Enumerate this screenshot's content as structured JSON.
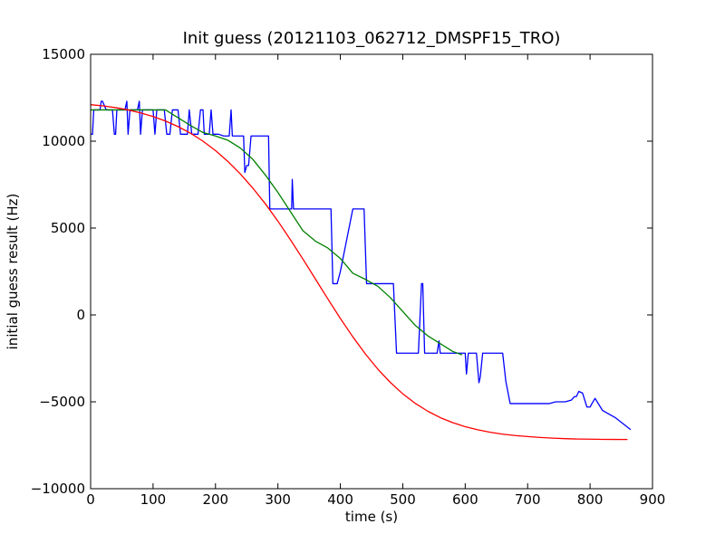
{
  "chart_data": {
    "type": "line",
    "title": "Init guess (20121103_062712_DMSPF15_TRO)",
    "xlabel": "time (s)",
    "ylabel": "initial guess result (Hz)",
    "xlim": [
      0,
      900
    ],
    "ylim": [
      -10000,
      15000
    ],
    "xticks": [
      0,
      100,
      200,
      300,
      400,
      500,
      600,
      700,
      800,
      900
    ],
    "yticks": [
      -10000,
      -5000,
      0,
      5000,
      10000,
      15000
    ],
    "xtick_labels": [
      "0",
      "100",
      "200",
      "300",
      "400",
      "500",
      "600",
      "700",
      "800",
      "900"
    ],
    "ytick_labels": [
      "−10000",
      "−5000",
      "0",
      "5000",
      "10000",
      "15000"
    ],
    "grid": false,
    "series": [
      {
        "color": "#0000ff",
        "x": [
          0,
          3,
          5,
          10,
          15,
          17,
          19,
          25,
          35,
          38,
          40,
          42,
          47,
          55,
          58,
          60,
          63,
          68,
          75,
          78,
          80,
          83,
          87,
          95,
          100,
          103,
          106,
          110,
          118,
          122,
          127,
          131,
          135,
          140,
          144,
          148,
          155,
          158,
          162,
          168,
          172,
          176,
          180,
          182,
          185,
          190,
          193,
          196,
          200,
          205,
          213,
          218,
          222,
          225,
          227,
          230,
          235,
          240,
          245,
          247,
          250,
          253,
          257,
          262,
          270,
          280,
          285,
          287,
          295,
          305,
          315,
          322,
          323,
          325,
          330,
          345,
          360,
          375,
          385,
          388,
          392,
          395,
          400,
          410,
          420,
          428,
          432,
          438,
          442,
          445,
          448,
          455,
          470,
          480,
          485,
          490,
          495,
          505,
          515,
          525,
          530,
          532,
          535,
          540,
          550,
          555,
          558,
          560,
          570,
          580,
          590,
          598,
          600,
          602,
          605,
          610,
          615,
          618,
          622,
          624,
          628,
          635,
          645,
          655,
          660,
          665,
          672,
          690,
          710,
          735,
          745,
          760,
          770,
          775,
          778,
          782,
          788,
          795,
          800,
          803,
          808,
          820,
          840,
          865
        ],
        "y": [
          10400,
          10400,
          11800,
          11800,
          11800,
          12300,
          12300,
          11800,
          11800,
          10400,
          10400,
          11800,
          11800,
          11800,
          12300,
          10400,
          11800,
          11800,
          11800,
          12300,
          10400,
          11800,
          11800,
          11800,
          11800,
          10400,
          11800,
          11800,
          11800,
          10400,
          10400,
          11800,
          11800,
          11800,
          10400,
          10400,
          10400,
          11800,
          10400,
          10400,
          10400,
          11800,
          11800,
          10400,
          10400,
          10400,
          11800,
          10400,
          10400,
          10400,
          10300,
          10300,
          10300,
          11800,
          10300,
          10300,
          10300,
          10300,
          10300,
          8200,
          8600,
          8600,
          10300,
          10300,
          10300,
          10300,
          10300,
          6100,
          6100,
          6100,
          6100,
          6100,
          7800,
          6100,
          6100,
          6100,
          6100,
          6100,
          6100,
          1800,
          1800,
          1800,
          2500,
          4300,
          6100,
          6100,
          6100,
          6100,
          1800,
          1800,
          1800,
          1800,
          1800,
          1800,
          1800,
          -2200,
          -2200,
          -2200,
          -2200,
          -2200,
          1800,
          1800,
          -2200,
          -2200,
          -2200,
          -2200,
          -1500,
          -2200,
          -2200,
          -2200,
          -2200,
          -2200,
          -2200,
          -3400,
          -2200,
          -2200,
          -2200,
          -2200,
          -3900,
          -3600,
          -2200,
          -2200,
          -2200,
          -2200,
          -2200,
          -3800,
          -5100,
          -5100,
          -5100,
          -5100,
          -5000,
          -5000,
          -4900,
          -4700,
          -4700,
          -4400,
          -4500,
          -5300,
          -5300,
          -5100,
          -4800,
          -5500,
          -5900,
          -6600
        ]
      },
      {
        "color": "#008000",
        "x": [
          0,
          10,
          20,
          40,
          60,
          80,
          100,
          120,
          140,
          160,
          180,
          200,
          220,
          240,
          260,
          280,
          300,
          320,
          340,
          360,
          380,
          400,
          420,
          440,
          460,
          480,
          500,
          520,
          540,
          560,
          580,
          595
        ],
        "y": [
          11800,
          11800,
          11800,
          11800,
          11800,
          11800,
          11800,
          11800,
          11350,
          10900,
          10500,
          10300,
          10050,
          9600,
          8950,
          8050,
          7050,
          5950,
          4850,
          4250,
          3850,
          3250,
          2400,
          2050,
          1650,
          1000,
          200,
          -600,
          -1200,
          -1650,
          -2100,
          -2300
        ]
      },
      {
        "color": "#ff0000",
        "x": [
          0,
          20,
          40,
          60,
          80,
          100,
          120,
          140,
          160,
          180,
          200,
          220,
          240,
          260,
          280,
          300,
          320,
          340,
          360,
          380,
          400,
          420,
          440,
          460,
          480,
          500,
          520,
          540,
          560,
          580,
          600,
          620,
          640,
          660,
          680,
          700,
          720,
          740,
          760,
          780,
          800,
          820,
          840,
          860
        ],
        "y": [
          12100,
          12030,
          11930,
          11800,
          11630,
          11420,
          11160,
          10840,
          10460,
          10000,
          9460,
          8830,
          8110,
          7290,
          6390,
          5400,
          4330,
          3220,
          2070,
          920,
          -200,
          -1260,
          -2240,
          -3120,
          -3880,
          -4540,
          -5090,
          -5540,
          -5910,
          -6200,
          -6430,
          -6610,
          -6750,
          -6860,
          -6940,
          -7000,
          -7050,
          -7090,
          -7120,
          -7140,
          -7150,
          -7160,
          -7165,
          -7170
        ]
      }
    ]
  }
}
